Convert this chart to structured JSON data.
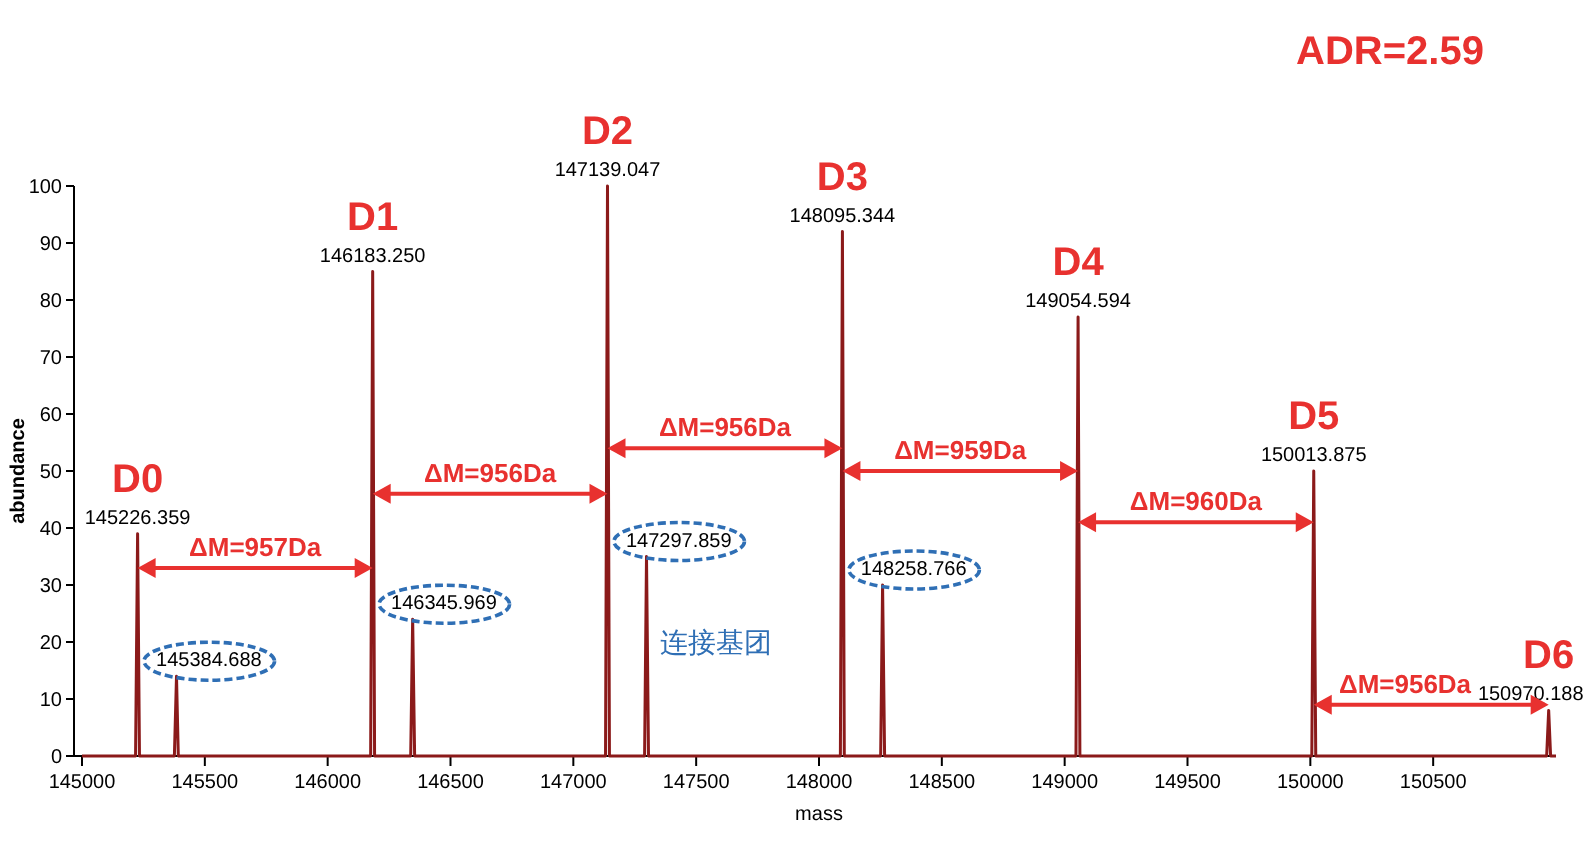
{
  "chart_data": {
    "type": "line",
    "xlabel": "mass",
    "ylabel": "abundance",
    "xlim": [
      145000,
      151000
    ],
    "ylim": [
      0,
      100
    ],
    "xticks": [
      145000,
      145500,
      146000,
      146500,
      147000,
      147500,
      148000,
      148500,
      149000,
      149500,
      150000,
      150500
    ],
    "yticks": [
      0,
      10,
      20,
      30,
      40,
      50,
      60,
      70,
      80,
      90,
      100
    ],
    "grid": false,
    "series": [
      {
        "color": "#8b1a1a",
        "x": [
          145000,
          145218,
          145226.359,
          145234,
          145376,
          145384.688,
          145392,
          146175,
          146183.25,
          146191,
          146338,
          146345.969,
          146354,
          147131,
          147139.047,
          147147,
          147290,
          147297.859,
          147306,
          148087,
          148095.344,
          148103,
          148251,
          148258.766,
          148267,
          149046,
          149054.594,
          149062,
          150006,
          150013.875,
          150022,
          150962,
          150970.188,
          150978,
          151000
        ],
        "values": [
          0,
          0,
          39,
          0,
          0,
          14,
          0,
          0,
          85,
          0,
          0,
          24,
          0,
          0,
          100,
          0,
          0,
          35,
          0,
          0,
          92,
          0,
          0,
          30,
          0,
          0,
          77,
          0,
          0,
          50,
          0,
          0,
          8,
          0,
          0
        ]
      }
    ],
    "annotations": [
      {
        "text": "D0",
        "x": 145226.359,
        "y": 39
      },
      {
        "text": "D1",
        "x": 146183.25,
        "y": 85
      },
      {
        "text": "D2",
        "x": 147139.047,
        "y": 100
      },
      {
        "text": "D3",
        "x": 148095.344,
        "y": 92
      },
      {
        "text": "D4",
        "x": 149054.594,
        "y": 77
      },
      {
        "text": "D5",
        "x": 150013.875,
        "y": 50
      },
      {
        "text": "D6",
        "x": 150970.188,
        "y": 8
      },
      {
        "text": "145226.359",
        "x": 145226.359,
        "y": 39
      },
      {
        "text": "145384.688",
        "x": 145384.688,
        "y": 14
      },
      {
        "text": "146183.250",
        "x": 146183.25,
        "y": 85
      },
      {
        "text": "146345.969",
        "x": 146345.969,
        "y": 24
      },
      {
        "text": "147139.047",
        "x": 147139.047,
        "y": 100
      },
      {
        "text": "147297.859",
        "x": 147297.859,
        "y": 35
      },
      {
        "text": "148095.344",
        "x": 148095.344,
        "y": 92
      },
      {
        "text": "148258.766",
        "x": 148258.766,
        "y": 30
      },
      {
        "text": "149054.594",
        "x": 149054.594,
        "y": 77
      },
      {
        "text": "150013.875",
        "x": 150013.875,
        "y": 50
      },
      {
        "text": "150970.188",
        "x": 150970.188,
        "y": 8
      },
      {
        "text": "ΔM=957Da",
        "x": 146183.25,
        "y": 33
      },
      {
        "text": "ΔM=956Da",
        "x": 147139.047,
        "y": 46
      },
      {
        "text": "ΔM=956Da",
        "x": 148095.344,
        "y": 54
      },
      {
        "text": "ΔM=959Da",
        "x": 149054.594,
        "y": 50
      },
      {
        "text": "ΔM=960Da",
        "x": 150013.875,
        "y": 41
      },
      {
        "text": "ΔM=956Da",
        "x": 150970.188,
        "y": 9
      },
      "连接基团",
      "ADR=2.59"
    ]
  }
}
